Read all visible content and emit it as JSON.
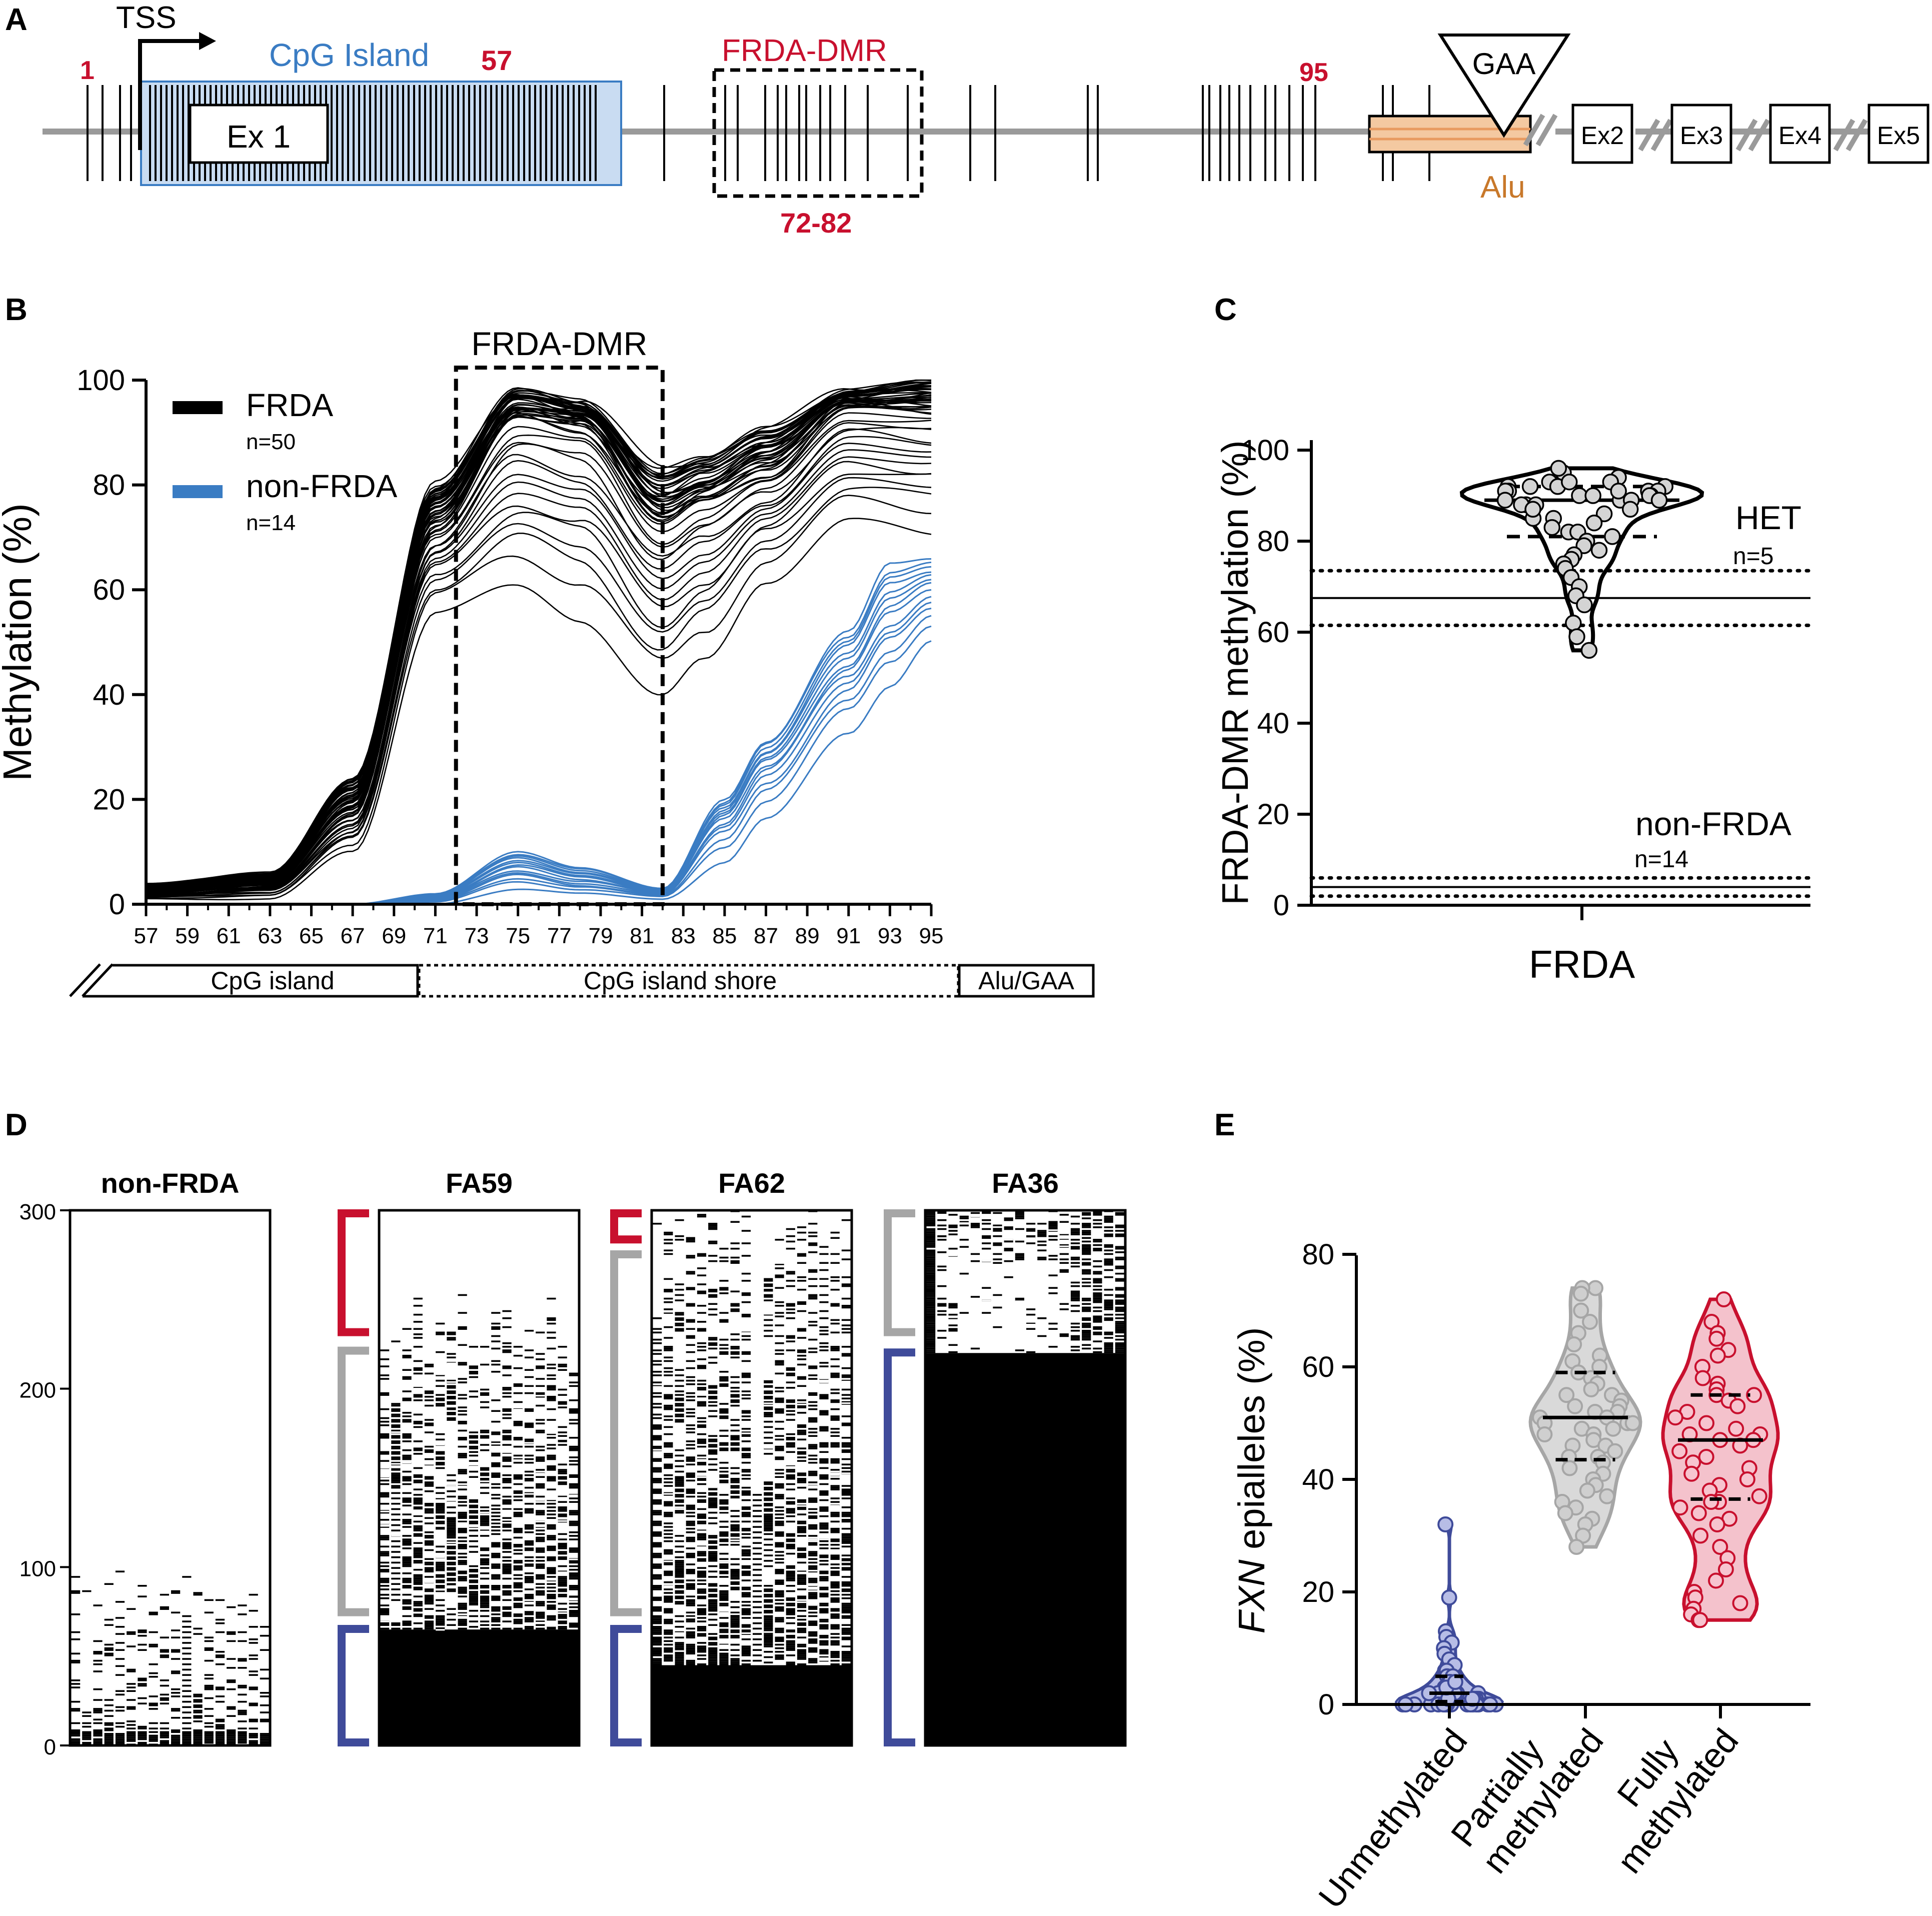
{
  "colors": {
    "red": "#c8102e",
    "blue": "#3a7cc3",
    "island_fill": "#c9dcf2",
    "alu_fill": "#f4c9a1",
    "alu_text": "#c8782a",
    "unmeth": "#3f4b9a",
    "unmeth_fill": "#b7bde6",
    "partial": "#a6a6a6",
    "partial_fill": "#d9d9d9",
    "full": "#c8102e",
    "full_fill": "#f4c2cc"
  },
  "panel_letters": [
    "A",
    "B",
    "C",
    "D",
    "E"
  ],
  "panelA": {
    "tss": "TSS",
    "cpg_island": "CpG Island",
    "ex1": "Ex 1",
    "cpg1": "1",
    "cpg57": "57",
    "cpg95": "95",
    "dmr": "FRDA-DMR",
    "dmr_range": "72-82",
    "gaa": "GAA",
    "alu": "Alu",
    "exons": [
      "Ex2",
      "Ex3",
      "Ex4",
      "Ex5"
    ]
  },
  "chart_data": [
    {
      "id": "B",
      "type": "line",
      "title": "FRDA-DMR",
      "xlabel": "",
      "ylabel": "Methylation (%)",
      "x_ticks": [
        "57",
        "59",
        "61",
        "63",
        "65",
        "67",
        "69",
        "71",
        "73",
        "75",
        "77",
        "79",
        "81",
        "83",
        "85",
        "87",
        "89",
        "91",
        "93",
        "95"
      ],
      "xlim": [
        57,
        95
      ],
      "ylim": [
        0,
        100
      ],
      "y_ticks": [
        "0",
        "20",
        "40",
        "60",
        "80",
        "100"
      ],
      "dmr_region": [
        72,
        82
      ],
      "regions": [
        "CpG island",
        "CpG island shore",
        "Alu/GAA"
      ],
      "legend": [
        {
          "name": "FRDA",
          "n": "n=50",
          "color": "#000000"
        },
        {
          "name": "non-FRDA",
          "n": "n=14",
          "color": "#3a7cc3"
        }
      ],
      "series_summary": [
        {
          "name": "FRDA",
          "count": 50,
          "x": [
            57,
            63,
            67,
            71,
            75,
            78,
            82,
            84,
            87,
            91,
            95
          ],
          "median": [
            2,
            4,
            18,
            72,
            93,
            91,
            73,
            77,
            82,
            95,
            94
          ],
          "low": [
            1,
            1,
            10,
            56,
            60,
            55,
            39,
            46,
            62,
            73,
            71
          ],
          "high": [
            4,
            6,
            24,
            80,
            98,
            96,
            83,
            85,
            91,
            98,
            100
          ]
        },
        {
          "name": "non-FRDA",
          "count": 14,
          "x": [
            57,
            63,
            67,
            71,
            75,
            78,
            82,
            85,
            87,
            91,
            93,
            95
          ],
          "median": [
            0,
            0,
            0,
            1,
            6,
            4,
            2,
            15,
            25,
            42,
            52,
            58
          ],
          "low": [
            0,
            0,
            0,
            0,
            3,
            2,
            1,
            8,
            16,
            33,
            42,
            50
          ],
          "high": [
            0,
            0,
            0,
            2,
            10,
            7,
            3,
            20,
            31,
            52,
            65,
            66
          ]
        }
      ]
    },
    {
      "id": "C",
      "type": "scatter",
      "xlabel": "FRDA",
      "ylabel": "FRDA-DMR methylation  (%)",
      "ylim": [
        0,
        100
      ],
      "y_ticks": [
        "0",
        "20",
        "40",
        "60",
        "80",
        "100"
      ],
      "n": 50,
      "median": 89,
      "quartiles": [
        81,
        92
      ],
      "het": {
        "label": "HET",
        "n": "n=5",
        "mean": 67.5,
        "range": [
          61.5,
          73.5
        ]
      },
      "nonfrda": {
        "label": "non-FRDA",
        "n": "n=14",
        "mean": 4,
        "range": [
          2,
          6
        ]
      },
      "values": [
        95,
        96,
        94,
        93,
        93,
        92,
        92,
        92,
        91,
        91,
        91,
        91,
        90,
        90,
        90,
        90,
        89,
        89,
        89,
        88,
        88,
        87,
        86,
        85,
        85,
        84,
        83,
        82,
        82,
        81,
        80,
        79,
        78,
        77,
        76,
        75,
        74,
        72,
        70,
        68,
        66,
        62,
        59,
        56,
        92,
        93,
        91,
        89,
        88,
        87
      ]
    },
    {
      "id": "D",
      "type": "heatmap",
      "y_ticks": [
        "0",
        "100",
        "200",
        "300"
      ],
      "ylim": [
        0,
        300
      ],
      "panels": [
        {
          "title": "non-FRDA",
          "full_above": 0,
          "methylated_below": 0,
          "partial_top": 108,
          "brackets": []
        },
        {
          "title": "FA59",
          "full_above": 300,
          "methylated_below": 65,
          "partial_top": 240,
          "brackets": [
            {
              "type": "full",
              "from": 230,
              "to": 300
            },
            {
              "type": "partial",
              "from": 73,
              "to": 223
            },
            {
              "type": "unmeth",
              "from": 0,
              "to": 67
            }
          ]
        },
        {
          "title": "FA62",
          "full_above": 300,
          "methylated_below": 45,
          "partial_top": 290,
          "brackets": [
            {
              "type": "full",
              "from": 282,
              "to": 300
            },
            {
              "type": "partial",
              "from": 73,
              "to": 277
            },
            {
              "type": "unmeth",
              "from": 0,
              "to": 67
            }
          ]
        },
        {
          "title": "FA36",
          "full_above": 220,
          "methylated_below": 220,
          "partial_top": 300,
          "brackets": [
            {
              "type": "partial",
              "from": 230,
              "to": 300
            },
            {
              "type": "unmeth",
              "from": 0,
              "to": 222
            }
          ]
        }
      ]
    },
    {
      "id": "E",
      "type": "scatter",
      "ylabel_italic": "FXN",
      "ylabel_rest": " epialleles (%)",
      "ylim": [
        0,
        80
      ],
      "y_ticks": [
        "0",
        "20",
        "40",
        "60",
        "80"
      ],
      "categories": [
        "Unmethylated",
        "Partially methylated",
        "Fully methylated"
      ],
      "category_lines": [
        [
          "Unmethylated"
        ],
        [
          "Partially",
          "methylated"
        ],
        [
          "Fully",
          "methylated"
        ]
      ],
      "groups": [
        {
          "name": "Unmethylated",
          "median": 2,
          "q1": 0.5,
          "q3": 5,
          "values": [
            32,
            19,
            13,
            12,
            11,
            10,
            9,
            8,
            7,
            6,
            6,
            5,
            5,
            4,
            4,
            3,
            3,
            3,
            2,
            2,
            2,
            2,
            1,
            1,
            1,
            1,
            1,
            1,
            0,
            0,
            0,
            0,
            0,
            0,
            0,
            0,
            0,
            0,
            0,
            0,
            0,
            0,
            0,
            0,
            1,
            2,
            3,
            4,
            1,
            0
          ]
        },
        {
          "name": "Partially methylated",
          "median": 51,
          "q1": 43.5,
          "q3": 59,
          "values": [
            74,
            74,
            73,
            70,
            68,
            66,
            64,
            62,
            61,
            60,
            59,
            58,
            57,
            56,
            55,
            55,
            54,
            53,
            53,
            52,
            52,
            51,
            51,
            50,
            50,
            50,
            49,
            49,
            48,
            48,
            47,
            46,
            46,
            45,
            44,
            44,
            43,
            42,
            41,
            40,
            39,
            38,
            37,
            36,
            35,
            34,
            33,
            32,
            30,
            28
          ]
        },
        {
          "name": "Fully methylated",
          "median": 47,
          "q1": 36.5,
          "q3": 55,
          "values": [
            72,
            68,
            66,
            65,
            63,
            62,
            60,
            58,
            57,
            56,
            55,
            55,
            54,
            53,
            52,
            51,
            50,
            49,
            48,
            48,
            47,
            47,
            46,
            45,
            44,
            43,
            42,
            41,
            40,
            39,
            38,
            37,
            36,
            36,
            35,
            34,
            33,
            32,
            30,
            28,
            26,
            24,
            22,
            20,
            19,
            18,
            17,
            16,
            15,
            15
          ]
        }
      ]
    }
  ]
}
